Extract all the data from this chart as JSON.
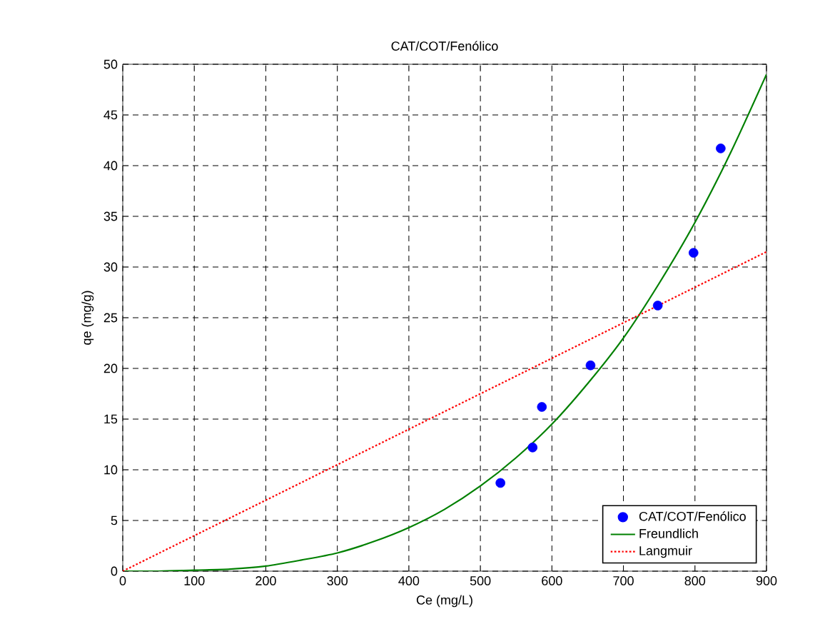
{
  "chart_data": {
    "type": "line",
    "title": "CAT/COT/Fenólico",
    "xlabel": "Ce (mg/L)",
    "ylabel": "qe (mg/g)",
    "xlim": [
      0,
      900
    ],
    "ylim": [
      0,
      50
    ],
    "xticks": [
      0,
      100,
      200,
      300,
      400,
      500,
      600,
      700,
      800,
      900
    ],
    "yticks": [
      0,
      5,
      10,
      15,
      20,
      25,
      30,
      35,
      40,
      45,
      50
    ],
    "grid": true,
    "legend": "bottom right",
    "series": [
      {
        "name": "CAT/COT/Fenólico",
        "type": "scatter",
        "marker": "circle",
        "color": "#0000ff",
        "x": [
          528,
          573,
          586,
          654,
          748,
          798,
          836
        ],
        "values": [
          8.7,
          12.2,
          16.2,
          20.3,
          26.2,
          31.4,
          41.7
        ]
      },
      {
        "name": "Freundlich",
        "line_style": "solid",
        "marker": "none",
        "color": "#008000",
        "x": [
          0,
          50,
          100,
          150,
          200,
          250,
          300,
          350,
          400,
          450,
          500,
          550,
          600,
          650,
          700,
          750,
          800,
          850,
          900
        ],
        "values": [
          0,
          0,
          0.1,
          0.2,
          0.5,
          1.1,
          1.8,
          2.9,
          4.3,
          6.1,
          8.4,
          11.2,
          14.5,
          18.5,
          23,
          28.4,
          34.4,
          41.3,
          49
        ]
      },
      {
        "name": "Langmuir",
        "type": "line",
        "line_style": "dotted",
        "marker": "none",
        "color": "#ff0000",
        "x": [
          0,
          900
        ],
        "values": [
          0,
          31.5
        ]
      }
    ]
  }
}
